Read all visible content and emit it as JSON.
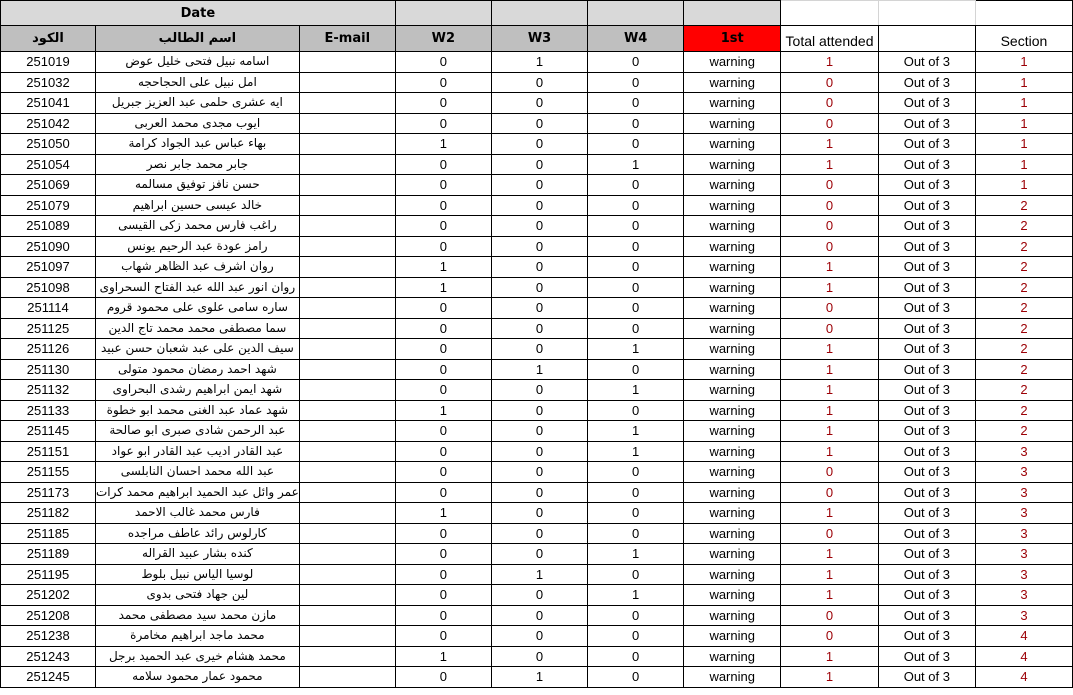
{
  "header": {
    "date": "Date",
    "code": "الكود",
    "name": "اسم الطالب",
    "email": "E-mail",
    "w2": "W2",
    "w3": "W3",
    "w4": "W4",
    "first": "1st",
    "total": "Total attended",
    "section": "Section"
  },
  "colors": {
    "first_header": "#ff0000",
    "header_gray": "#bfbfbf",
    "values_red": "#9c0006"
  },
  "warning_text": "warning",
  "out_of_text": "Out of 3",
  "rows": [
    {
      "id": "251019",
      "name": "اسامه نبيل فتحى خليل عوض",
      "w2": "0",
      "w3": "1",
      "w4": "0",
      "total": "1",
      "section": "1"
    },
    {
      "id": "251032",
      "name": "امل نبيل على الحجاحجه",
      "w2": "0",
      "w3": "0",
      "w4": "0",
      "total": "0",
      "section": "1"
    },
    {
      "id": "251041",
      "name": "ايه عشرى حلمى عبد العزيز جبريل",
      "w2": "0",
      "w3": "0",
      "w4": "0",
      "total": "0",
      "section": "1"
    },
    {
      "id": "251042",
      "name": "ايوب مجدى محمد العربى",
      "w2": "0",
      "w3": "0",
      "w4": "0",
      "total": "0",
      "section": "1"
    },
    {
      "id": "251050",
      "name": "بهاء عباس عبد الجواد كرامة",
      "w2": "1",
      "w3": "0",
      "w4": "0",
      "total": "1",
      "section": "1"
    },
    {
      "id": "251054",
      "name": "جابر محمد جابر نصر",
      "w2": "0",
      "w3": "0",
      "w4": "1",
      "total": "1",
      "section": "1"
    },
    {
      "id": "251069",
      "name": "حسن نافز توفيق مسالمه",
      "w2": "0",
      "w3": "0",
      "w4": "0",
      "total": "0",
      "section": "1"
    },
    {
      "id": "251079",
      "name": "خالد عيسى حسين ابراهيم",
      "w2": "0",
      "w3": "0",
      "w4": "0",
      "total": "0",
      "section": "2"
    },
    {
      "id": "251089",
      "name": "راغب فارس محمد زكى القيسى",
      "w2": "0",
      "w3": "0",
      "w4": "0",
      "total": "0",
      "section": "2"
    },
    {
      "id": "251090",
      "name": "رامز عودة عبد الرحيم يونس",
      "w2": "0",
      "w3": "0",
      "w4": "0",
      "total": "0",
      "section": "2"
    },
    {
      "id": "251097",
      "name": "روان اشرف عبد الظاهر شهاب",
      "w2": "1",
      "w3": "0",
      "w4": "0",
      "total": "1",
      "section": "2"
    },
    {
      "id": "251098",
      "name": "روان انور عبد الله عبد الفتاح السحراوى",
      "w2": "1",
      "w3": "0",
      "w4": "0",
      "total": "1",
      "section": "2"
    },
    {
      "id": "251114",
      "name": "ساره سامى علوى على محمود قروم",
      "w2": "0",
      "w3": "0",
      "w4": "0",
      "total": "0",
      "section": "2"
    },
    {
      "id": "251125",
      "name": "سما مصطفى محمد محمد تاج الدين",
      "w2": "0",
      "w3": "0",
      "w4": "0",
      "total": "0",
      "section": "2"
    },
    {
      "id": "251126",
      "name": "سيف الدين على عبد شعبان حسن عبيد",
      "w2": "0",
      "w3": "0",
      "w4": "1",
      "total": "1",
      "section": "2"
    },
    {
      "id": "251130",
      "name": "شهد احمد رمضان محمود متولى",
      "w2": "0",
      "w3": "1",
      "w4": "0",
      "total": "1",
      "section": "2"
    },
    {
      "id": "251132",
      "name": "شهد ايمن ابراهيم رشدى البحراوى",
      "w2": "0",
      "w3": "0",
      "w4": "1",
      "total": "1",
      "section": "2"
    },
    {
      "id": "251133",
      "name": "شهد عماد عبد الغنى محمد ابو خطوة",
      "w2": "1",
      "w3": "0",
      "w4": "0",
      "total": "1",
      "section": "2"
    },
    {
      "id": "251145",
      "name": "عبد الرحمن شادى صبرى ابو صالحة",
      "w2": "0",
      "w3": "0",
      "w4": "1",
      "total": "1",
      "section": "2"
    },
    {
      "id": "251151",
      "name": "عبد القادر اديب عبد القادر ابو عواد",
      "w2": "0",
      "w3": "0",
      "w4": "1",
      "total": "1",
      "section": "3"
    },
    {
      "id": "251155",
      "name": "عبد الله محمد احسان النابلسى",
      "w2": "0",
      "w3": "0",
      "w4": "0",
      "total": "0",
      "section": "3"
    },
    {
      "id": "251173",
      "name": "عمر وائل عبد الحميد ابراهيم محمد كرات",
      "w2": "0",
      "w3": "0",
      "w4": "0",
      "total": "0",
      "section": "3"
    },
    {
      "id": "251182",
      "name": "فارس محمد غالب الاحمد",
      "w2": "1",
      "w3": "0",
      "w4": "0",
      "total": "1",
      "section": "3"
    },
    {
      "id": "251185",
      "name": "كارلوس رائد عاطف مراجده",
      "w2": "0",
      "w3": "0",
      "w4": "0",
      "total": "0",
      "section": "3"
    },
    {
      "id": "251189",
      "name": "كنده بشار عبيد القراله",
      "w2": "0",
      "w3": "0",
      "w4": "1",
      "total": "1",
      "section": "3"
    },
    {
      "id": "251195",
      "name": "لوسيا الياس نبيل بلوط",
      "w2": "0",
      "w3": "1",
      "w4": "0",
      "total": "1",
      "section": "3"
    },
    {
      "id": "251202",
      "name": "لين جهاد فتحى بدوى",
      "w2": "0",
      "w3": "0",
      "w4": "1",
      "total": "1",
      "section": "3"
    },
    {
      "id": "251208",
      "name": "مازن محمد سيد مصطفى محمد",
      "w2": "0",
      "w3": "0",
      "w4": "0",
      "total": "0",
      "section": "3"
    },
    {
      "id": "251238",
      "name": "محمد ماجد ابراهيم مخامرة",
      "w2": "0",
      "w3": "0",
      "w4": "0",
      "total": "0",
      "section": "4"
    },
    {
      "id": "251243",
      "name": "محمد هشام خيرى عبد الحميد برجل",
      "w2": "1",
      "w3": "0",
      "w4": "0",
      "total": "1",
      "section": "4"
    },
    {
      "id": "251245",
      "name": "محمود عمار محمود سلامه",
      "w2": "0",
      "w3": "1",
      "w4": "0",
      "total": "1",
      "section": "4"
    }
  ]
}
